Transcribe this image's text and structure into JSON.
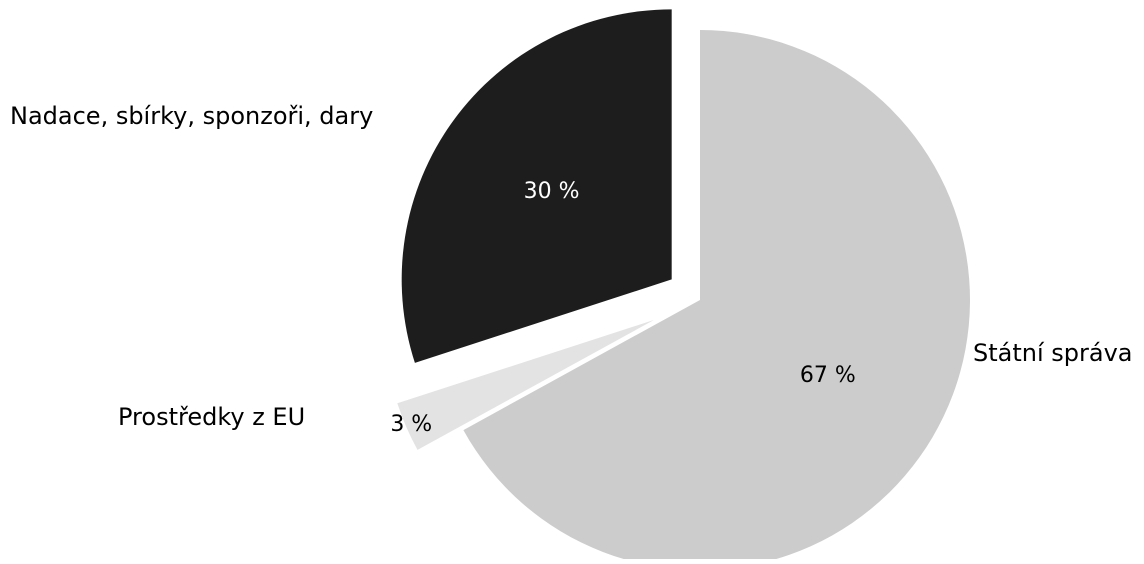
{
  "chart_data": {
    "type": "pie",
    "title": "",
    "slices": [
      {
        "label": "Státní správa",
        "value": 67,
        "display": "67 %",
        "color": "#cccccc",
        "label_color": "#000000"
      },
      {
        "label": "Prostředky z EU",
        "value": 3,
        "display": "3 %",
        "color": "#e3e3e3",
        "label_color": "#000000"
      },
      {
        "label": "Nadace, sbírky, sponzoři, dary",
        "value": 30,
        "display": "30 %",
        "color": "#1d1d1e",
        "label_color": "#ffffff"
      }
    ],
    "exploded": true,
    "legend": "none"
  }
}
